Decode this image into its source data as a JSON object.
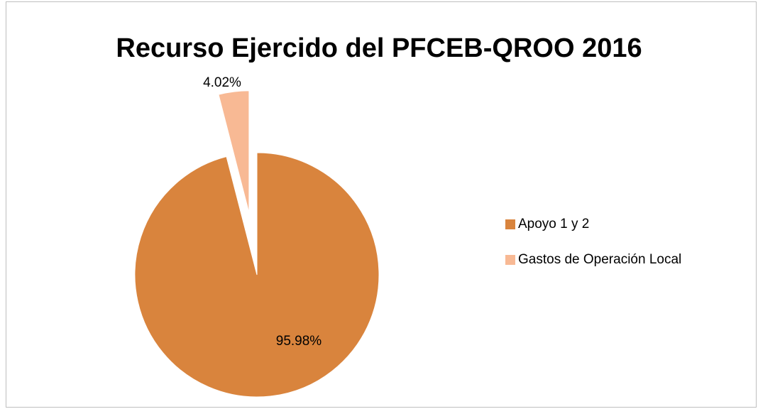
{
  "chart_data": {
    "type": "pie",
    "title": "Recurso Ejercido del PFCEB-QROO 2016",
    "categories": [
      "Apoyo 1 y 2",
      "Gastos de Operación Local"
    ],
    "values": [
      95.98,
      4.02
    ],
    "value_labels": [
      "95.98%",
      "4.02%"
    ],
    "colors": [
      "#D9843D",
      "#F8B994"
    ],
    "legend": "right"
  }
}
